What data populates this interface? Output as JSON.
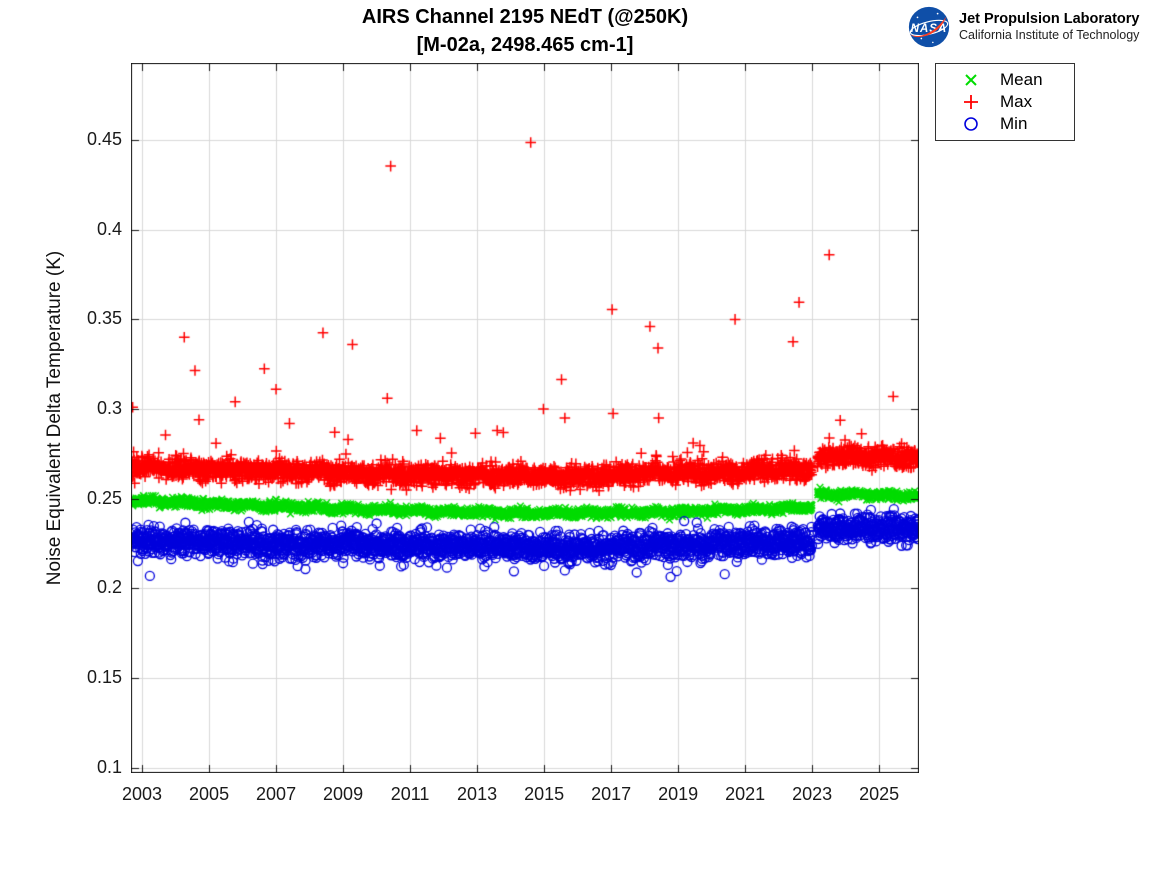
{
  "header": {
    "title_line1": "AIRS Channel 2195 NEdT (@250K)",
    "title_line2": "[M-02a, 2498.465 cm-1]",
    "logo": {
      "org": "NASA",
      "name": "Jet Propulsion Laboratory",
      "sub": "California Institute of Technology"
    }
  },
  "chart_data": {
    "type": "scatter",
    "title": "AIRS Channel 2195 NEdT (@250K) [M-02a, 2498.465 cm-1]",
    "xlabel": "",
    "ylabel": "Noise Equivalent Delta Temperature (K)",
    "xlim": [
      2002.67,
      2026.19
    ],
    "ylim": [
      0.097,
      0.493
    ],
    "grid": true,
    "n_points": 2950,
    "gap": [
      2023.0,
      2023.16
    ],
    "xticks": [
      {
        "v": 2003,
        "label": "2003"
      },
      {
        "v": 2005,
        "label": "2005"
      },
      {
        "v": 2007,
        "label": "2007"
      },
      {
        "v": 2009,
        "label": "2009"
      },
      {
        "v": 2011,
        "label": "2011"
      },
      {
        "v": 2013,
        "label": "2013"
      },
      {
        "v": 2015,
        "label": "2015"
      },
      {
        "v": 2017,
        "label": "2017"
      },
      {
        "v": 2019,
        "label": "2019"
      },
      {
        "v": 2021,
        "label": "2021"
      },
      {
        "v": 2023,
        "label": "2023"
      },
      {
        "v": 2025,
        "label": "2025"
      }
    ],
    "yticks": [
      {
        "v": 0.1,
        "label": "0.1"
      },
      {
        "v": 0.15,
        "label": "0.15"
      },
      {
        "v": 0.2,
        "label": "0.2"
      },
      {
        "v": 0.25,
        "label": "0.25"
      },
      {
        "v": 0.3,
        "label": "0.3"
      },
      {
        "v": 0.35,
        "label": "0.35"
      },
      {
        "v": 0.4,
        "label": "0.4"
      },
      {
        "v": 0.45,
        "label": "0.45"
      }
    ],
    "legend": {
      "position": "outside-top-right",
      "entries": [
        {
          "label": "Mean",
          "marker": "x",
          "color": "#00dc00"
        },
        {
          "label": "Max",
          "marker": "+",
          "color": "#ff0000"
        },
        {
          "label": "Min",
          "marker": "o",
          "color": "#0000dd"
        }
      ]
    },
    "series": [
      {
        "name": "Mean",
        "marker": "x",
        "color": "#00dc00",
        "seed": 11,
        "sigma": 0.0012,
        "trend": [
          [
            2002.7,
            0.2492
          ],
          [
            2004,
            0.2478
          ],
          [
            2006,
            0.2462
          ],
          [
            2008,
            0.245
          ],
          [
            2010,
            0.244
          ],
          [
            2012,
            0.2428
          ],
          [
            2013.5,
            0.2422
          ],
          [
            2016.5,
            0.2419
          ],
          [
            2018,
            0.2424
          ],
          [
            2019.5,
            0.243
          ],
          [
            2021,
            0.2438
          ],
          [
            2022.5,
            0.2448
          ],
          [
            2023.0,
            0.2452
          ],
          [
            2023.17,
            0.2522
          ],
          [
            2024,
            0.2528
          ],
          [
            2025,
            0.2522
          ],
          [
            2026.2,
            0.2512
          ]
        ]
      },
      {
        "name": "Max",
        "marker": "+",
        "color": "#ff0000",
        "seed": 22,
        "sigma": 0.0028,
        "tail": {
          "dir": 1,
          "prob_pre": 0.007,
          "prob_post": 0.022,
          "base": 0.006,
          "scale": 0.006,
          "cap": 0.03,
          "fuzz": 0.005
        },
        "trend": [
          [
            2002.7,
            0.268
          ],
          [
            2004,
            0.267
          ],
          [
            2006,
            0.2658
          ],
          [
            2008,
            0.2648
          ],
          [
            2010,
            0.264
          ],
          [
            2012,
            0.2632
          ],
          [
            2014,
            0.2626
          ],
          [
            2015.5,
            0.2622
          ],
          [
            2017,
            0.2628
          ],
          [
            2018,
            0.2638
          ],
          [
            2019,
            0.2645
          ],
          [
            2021,
            0.265
          ],
          [
            2023.0,
            0.266
          ],
          [
            2023.17,
            0.273
          ],
          [
            2023.7,
            0.2745
          ],
          [
            2024.3,
            0.274
          ],
          [
            2025,
            0.273
          ],
          [
            2026.2,
            0.272
          ]
        ],
        "outliers": [
          [
            2002.72,
            0.301
          ],
          [
            2003.7,
            0.2855
          ],
          [
            2004.26,
            0.34
          ],
          [
            2004.58,
            0.3215
          ],
          [
            2004.7,
            0.294
          ],
          [
            2005.78,
            0.304
          ],
          [
            2006.65,
            0.3225
          ],
          [
            2007.0,
            0.311
          ],
          [
            2007.4,
            0.292
          ],
          [
            2008.4,
            0.3425
          ],
          [
            2008.75,
            0.287
          ],
          [
            2009.28,
            0.336
          ],
          [
            2010.32,
            0.306
          ],
          [
            2010.42,
            0.4355
          ],
          [
            2011.2,
            0.288
          ],
          [
            2012.95,
            0.2865
          ],
          [
            2013.6,
            0.288
          ],
          [
            2014.6,
            0.4487
          ],
          [
            2014.98,
            0.3
          ],
          [
            2015.52,
            0.3165
          ],
          [
            2015.62,
            0.295
          ],
          [
            2017.03,
            0.3555
          ],
          [
            2017.06,
            0.2975
          ],
          [
            2018.16,
            0.346
          ],
          [
            2018.4,
            0.334
          ],
          [
            2018.42,
            0.295
          ],
          [
            2019.45,
            0.281
          ],
          [
            2020.7,
            0.35
          ],
          [
            2022.43,
            0.3375
          ],
          [
            2022.61,
            0.3595
          ],
          [
            2023.51,
            0.386
          ],
          [
            2025.42,
            0.307
          ]
        ]
      },
      {
        "name": "Min",
        "marker": "o",
        "color": "#0000dd",
        "seed": 33,
        "sigma": 0.0036,
        "tail": {
          "dir": -1,
          "prob_pre": 0.01,
          "prob_post": 0.01,
          "base": 0.004,
          "scale": 0.0045,
          "cap": 0.018,
          "fuzz": 0.004
        },
        "trend": [
          [
            2002.7,
            0.227
          ],
          [
            2004,
            0.2258
          ],
          [
            2006,
            0.225
          ],
          [
            2008,
            0.2248
          ],
          [
            2010,
            0.2245
          ],
          [
            2012,
            0.2238
          ],
          [
            2014,
            0.223
          ],
          [
            2015.5,
            0.2226
          ],
          [
            2017,
            0.223
          ],
          [
            2018.5,
            0.2238
          ],
          [
            2020,
            0.2248
          ],
          [
            2021.5,
            0.2255
          ],
          [
            2023.0,
            0.2262
          ],
          [
            2023.17,
            0.233
          ],
          [
            2024,
            0.2342
          ],
          [
            2025,
            0.2338
          ],
          [
            2026.2,
            0.233
          ]
        ],
        "outliers": [
          [
            2005.6,
            0.215
          ],
          [
            2006.6,
            0.2135
          ],
          [
            2009.0,
            0.214
          ],
          [
            2012.1,
            0.2115
          ],
          [
            2014.1,
            0.2095
          ],
          [
            2015.0,
            0.2125
          ],
          [
            2015.62,
            0.21
          ],
          [
            2019.7,
            0.215
          ],
          [
            2021.5,
            0.216
          ],
          [
            2022.4,
            0.217
          ]
        ]
      }
    ]
  }
}
